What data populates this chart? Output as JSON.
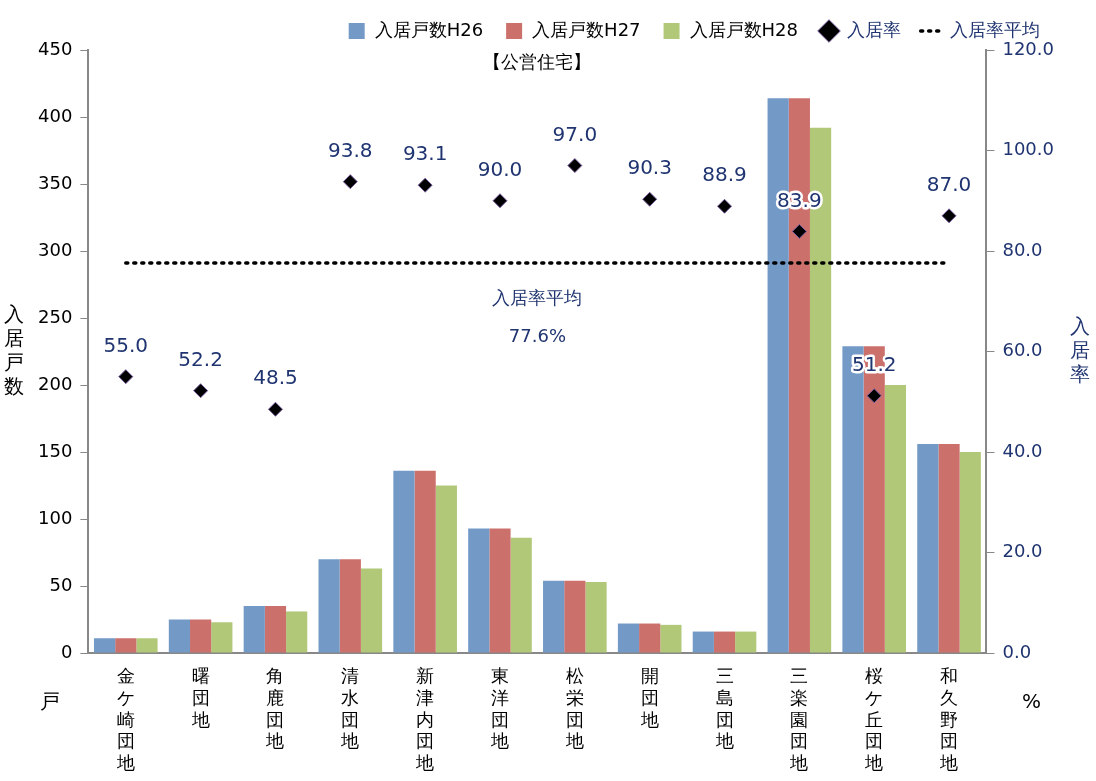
{
  "chart_data": {
    "type": "bar",
    "title": "【公営住宅】",
    "ylabel": "入居戸数",
    "y2label": "入居率",
    "categories": [
      "金ケ崎団地",
      "曙団地",
      "角鹿団地",
      "清水団地",
      "新津内団地",
      "東洋団地",
      "松栄団地",
      "開団地",
      "三島団地",
      "三楽園団地",
      "桜ケ丘団地",
      "和久野団地"
    ],
    "series": [
      {
        "name": "入居戸数H26",
        "color": "#7399c6",
        "values": [
          11,
          25,
          35,
          70,
          136,
          93,
          54,
          22,
          16,
          414,
          229,
          156
        ]
      },
      {
        "name": "入居戸数H27",
        "color": "#cc706c",
        "values": [
          11,
          25,
          35,
          70,
          136,
          93,
          54,
          22,
          16,
          414,
          229,
          156
        ]
      },
      {
        "name": "入居戸数H28",
        "color": "#b0c878",
        "values": [
          11,
          23,
          31,
          63,
          125,
          86,
          53,
          21,
          16,
          392,
          200,
          150
        ]
      },
      {
        "name": "入居率",
        "type": "scatter",
        "axis": "y2",
        "color": "#000000",
        "marker": "diamond",
        "x": [
          "金ケ崎団地",
          "曙団地",
          "角鹿団地",
          "清水団地",
          "新津内団地",
          "東洋団地",
          "松栄団地",
          "開団地",
          "三島団地",
          "三楽園団地",
          "桜ケ丘団地",
          "和久野団地"
        ],
        "values": [
          55.0,
          52.2,
          48.5,
          93.8,
          93.1,
          90.0,
          97.0,
          90.3,
          88.9,
          83.9,
          51.2,
          87.0
        ],
        "value_labels": [
          "55.0",
          "52.2",
          "48.5",
          "93.8",
          "93.1",
          "90.0",
          "97.0",
          "90.3",
          "88.9",
          "83.9",
          "51.2",
          "87.0"
        ]
      }
    ],
    "ylim": [
      0,
      450
    ],
    "yticks": [
      0,
      50,
      100,
      150,
      200,
      250,
      300,
      350,
      400,
      450
    ],
    "y2lim": [
      0,
      120
    ],
    "y2ticks": [
      {
        "value": 0,
        "label": "0.0"
      },
      {
        "value": 20,
        "label": "20.0"
      },
      {
        "value": 40,
        "label": "40.0"
      },
      {
        "value": 60,
        "label": "60.0"
      },
      {
        "value": 80,
        "label": "80.0"
      },
      {
        "value": 100,
        "label": "100.0"
      },
      {
        "value": 120,
        "label": "120.0"
      }
    ],
    "ref_lines": [
      {
        "axis": "y2",
        "value": 77.6,
        "label": "入居率平均",
        "color": "#000000",
        "line_style": "dotted"
      }
    ],
    "annotations": [
      "入居率平均",
      "77.6%",
      "戸",
      "%"
    ],
    "grid": false,
    "legend": "top"
  }
}
